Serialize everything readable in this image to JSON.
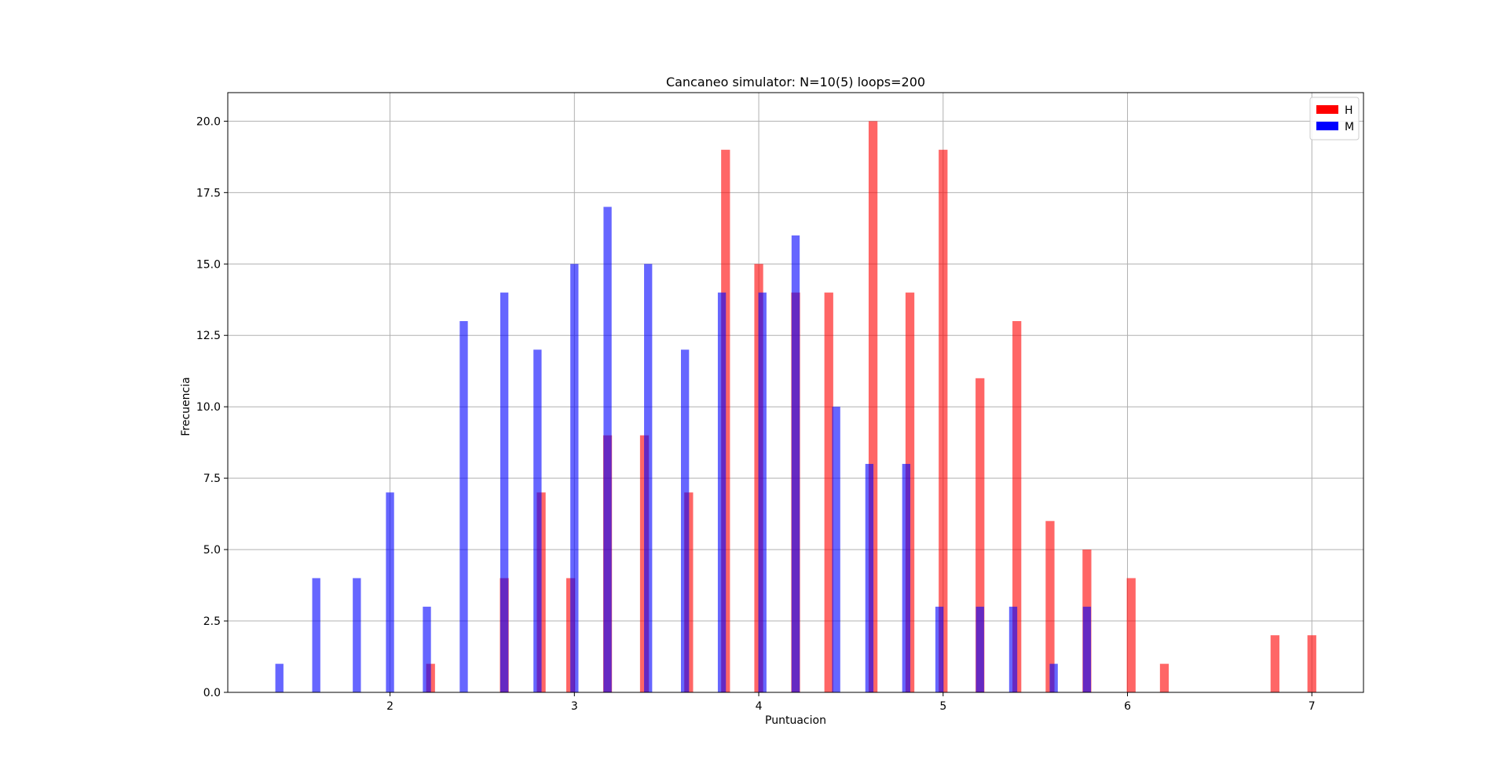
{
  "chart_data": {
    "type": "bar",
    "title": "Cancaneo simulator: N=10(5) loops=200",
    "xlabel": "Puntuacion",
    "ylabel": "Frecuencia",
    "xlim": [
      1.12,
      7.28
    ],
    "ylim": [
      0,
      21
    ],
    "xticks": [
      2,
      3,
      4,
      5,
      6,
      7
    ],
    "yticks": [
      0.0,
      2.5,
      5.0,
      7.5,
      10.0,
      12.5,
      15.0,
      17.5,
      20.0
    ],
    "grid": true,
    "legend_position": "upper right",
    "series": [
      {
        "name": "H",
        "color": "#ff0000",
        "alpha": 0.6,
        "bar_width": 0.048,
        "points": [
          {
            "x": 2.22,
            "y": 1
          },
          {
            "x": 2.62,
            "y": 4
          },
          {
            "x": 2.82,
            "y": 7
          },
          {
            "x": 2.98,
            "y": 4
          },
          {
            "x": 3.18,
            "y": 9
          },
          {
            "x": 3.38,
            "y": 9
          },
          {
            "x": 3.62,
            "y": 7
          },
          {
            "x": 3.82,
            "y": 19
          },
          {
            "x": 4.0,
            "y": 15
          },
          {
            "x": 4.2,
            "y": 14
          },
          {
            "x": 4.38,
            "y": 14
          },
          {
            "x": 4.62,
            "y": 20
          },
          {
            "x": 4.82,
            "y": 14
          },
          {
            "x": 5.0,
            "y": 19
          },
          {
            "x": 5.2,
            "y": 11
          },
          {
            "x": 5.4,
            "y": 13
          },
          {
            "x": 5.58,
            "y": 6
          },
          {
            "x": 5.78,
            "y": 5
          },
          {
            "x": 6.02,
            "y": 4
          },
          {
            "x": 6.2,
            "y": 1
          },
          {
            "x": 6.8,
            "y": 2
          },
          {
            "x": 7.0,
            "y": 2
          }
        ]
      },
      {
        "name": "M",
        "color": "#0000ff",
        "alpha": 0.6,
        "bar_width": 0.044,
        "points": [
          {
            "x": 1.4,
            "y": 1
          },
          {
            "x": 1.6,
            "y": 4
          },
          {
            "x": 1.82,
            "y": 4
          },
          {
            "x": 2.0,
            "y": 7
          },
          {
            "x": 2.2,
            "y": 3
          },
          {
            "x": 2.4,
            "y": 13
          },
          {
            "x": 2.62,
            "y": 14
          },
          {
            "x": 2.8,
            "y": 12
          },
          {
            "x": 3.0,
            "y": 15
          },
          {
            "x": 3.18,
            "y": 17
          },
          {
            "x": 3.4,
            "y": 15
          },
          {
            "x": 3.6,
            "y": 12
          },
          {
            "x": 3.8,
            "y": 14
          },
          {
            "x": 4.02,
            "y": 14
          },
          {
            "x": 4.2,
            "y": 16
          },
          {
            "x": 4.42,
            "y": 10
          },
          {
            "x": 4.6,
            "y": 8
          },
          {
            "x": 4.8,
            "y": 8
          },
          {
            "x": 4.98,
            "y": 3
          },
          {
            "x": 5.2,
            "y": 3
          },
          {
            "x": 5.38,
            "y": 3
          },
          {
            "x": 5.6,
            "y": 1
          },
          {
            "x": 5.78,
            "y": 3
          }
        ]
      }
    ]
  }
}
